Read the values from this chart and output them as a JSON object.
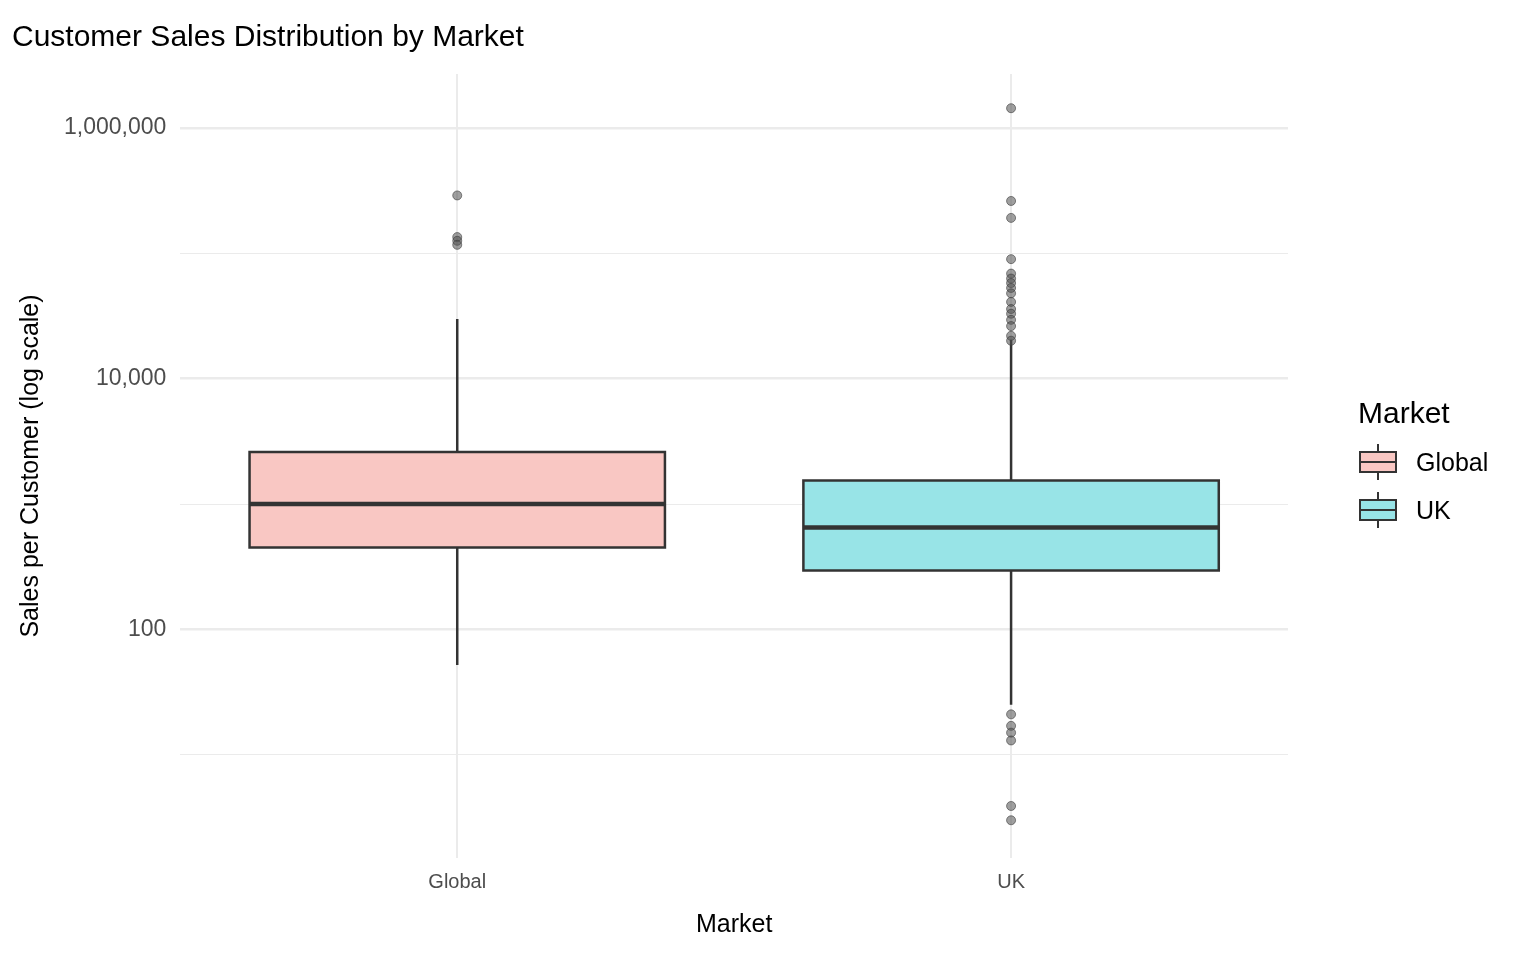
{
  "chart_data": {
    "type": "box",
    "title": "Customer Sales Distribution by Market",
    "xlabel": "Market",
    "ylabel": "Sales per Customer (log scale)",
    "legend_title": "Market",
    "categories": [
      "Global",
      "UK"
    ],
    "series": [
      {
        "name": "Global",
        "color": "#f9c7c3",
        "boxes": [
          {
            "low": 52,
            "q1": 450,
            "median": 1000,
            "q3": 2600,
            "high": 30000,
            "outliers": [
              290000,
              135000,
              126000,
              117000
            ]
          },
          null
        ]
      },
      {
        "name": "UK",
        "color": "#98e4e7",
        "boxes": [
          null,
          {
            "low": 25,
            "q1": 295,
            "median": 650,
            "q3": 1540,
            "high": 20500,
            "outliers": [
              1440000,
              262000,
              192000,
              90000,
              69000,
              63000,
              58000,
              53000,
              48000,
              41000,
              36000,
              33000,
              29500,
              26300,
              22000,
              20100,
              21,
              17,
              15,
              13,
              3.9,
              3
            ]
          }
        ]
      }
    ],
    "ylim": [
      1.5,
      2700000
    ],
    "yticks": [
      {
        "value": 10,
        "label": null
      },
      {
        "value": 100,
        "label": "100"
      },
      {
        "value": 1000,
        "label": null
      },
      {
        "value": 10000,
        "label": "10,000"
      },
      {
        "value": 100000,
        "label": null
      },
      {
        "value": 1000000,
        "label": "1,000,000"
      }
    ],
    "log": "y",
    "grid": true,
    "legend": "right"
  }
}
